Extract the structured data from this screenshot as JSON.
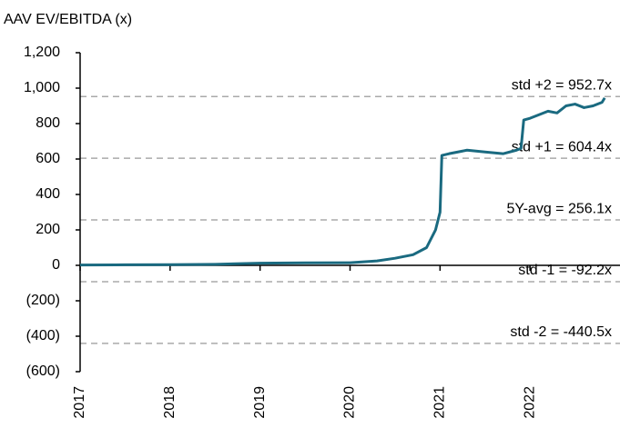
{
  "chart_data": {
    "type": "line",
    "title": "AAV EV/EBITDA (x)",
    "series": [
      {
        "name": "AAV EV/EBITDA",
        "color": "#1a6a80",
        "x": [
          2017.0,
          2017.5,
          2018.0,
          2018.5,
          2019.0,
          2019.5,
          2020.0,
          2020.3,
          2020.5,
          2020.7,
          2020.85,
          2020.95,
          2021.0,
          2021.02,
          2021.1,
          2021.3,
          2021.5,
          2021.7,
          2021.85,
          2021.9,
          2021.93,
          2022.0,
          2022.1,
          2022.2,
          2022.3,
          2022.4,
          2022.5,
          2022.6,
          2022.7,
          2022.8,
          2022.83
        ],
        "values": [
          2,
          3,
          4,
          6,
          12,
          14,
          15,
          25,
          40,
          60,
          100,
          200,
          300,
          620,
          630,
          650,
          640,
          630,
          650,
          660,
          820,
          830,
          850,
          870,
          860,
          900,
          910,
          890,
          900,
          920,
          945
        ]
      }
    ],
    "xlim": [
      2017,
      2023
    ],
    "xticks": [
      2017,
      2018,
      2019,
      2020,
      2021,
      2022
    ],
    "ylim": [
      -600,
      1200
    ],
    "yticks": [
      {
        "value": -600,
        "label": "(600)"
      },
      {
        "value": -400,
        "label": "(400)"
      },
      {
        "value": -200,
        "label": "(200)"
      },
      0,
      200,
      400,
      600,
      800,
      {
        "value": 1000,
        "label": "1,000"
      },
      {
        "value": 1200,
        "label": "1,200"
      }
    ],
    "reference_lines": [
      {
        "value": 952.7,
        "label": "std +2 = 952.7x"
      },
      {
        "value": 604.4,
        "label": "std +1 = 604.4x"
      },
      {
        "value": 256.1,
        "label": "5Y-avg = 256.1x"
      },
      {
        "value": -92.2,
        "label": "std -1 = -92.2x"
      },
      {
        "value": -440.5,
        "label": "std -2 = -440.5x"
      }
    ],
    "reference_color": "#aaaaaa"
  }
}
